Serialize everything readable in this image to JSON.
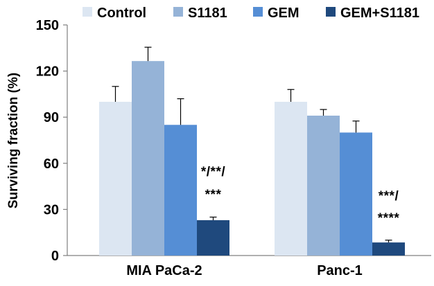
{
  "chart_data": {
    "type": "bar",
    "title": "",
    "xlabel": "",
    "ylabel": "Surviving fraction (%)",
    "ylim": [
      0,
      150
    ],
    "yticks": [
      0,
      30,
      60,
      90,
      120,
      150
    ],
    "categories": [
      "MIA PaCa-2",
      "Panc-1"
    ],
    "grid": false,
    "legend_position": "top",
    "series": [
      {
        "name": "Control",
        "color": "#dce6f2",
        "values": [
          100,
          100
        ],
        "errors": [
          10,
          8
        ]
      },
      {
        "name": "S1181",
        "color": "#95b3d7",
        "values": [
          126.5,
          91
        ],
        "errors": [
          9,
          4
        ]
      },
      {
        "name": "GEM",
        "color": "#558ed5",
        "values": [
          85,
          80
        ],
        "errors": [
          17,
          7.5
        ]
      },
      {
        "name": "GEM+S1181",
        "color": "#1f497d",
        "values": [
          23,
          8.5
        ],
        "errors": [
          2,
          1.5
        ]
      }
    ],
    "annotations": [
      {
        "category": 0,
        "series": 3,
        "lines": [
          "*/**/",
          "***"
        ]
      },
      {
        "category": 1,
        "series": 3,
        "lines": [
          "***/",
          "****"
        ]
      }
    ]
  }
}
